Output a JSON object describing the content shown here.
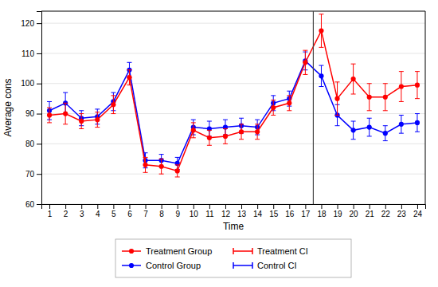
{
  "chart_data": {
    "type": "line",
    "xlabel": "Time",
    "ylabel": "Average cons",
    "x": [
      1,
      2,
      3,
      4,
      5,
      6,
      7,
      8,
      9,
      10,
      11,
      12,
      13,
      14,
      15,
      16,
      17,
      18,
      19,
      20,
      21,
      22,
      23,
      24
    ],
    "xlim": [
      0.5,
      24.5
    ],
    "xticks": [
      1,
      2,
      3,
      4,
      5,
      6,
      7,
      8,
      9,
      10,
      11,
      12,
      13,
      14,
      15,
      16,
      17,
      18,
      19,
      20,
      21,
      22,
      23,
      24
    ],
    "ylim": [
      60,
      124
    ],
    "yticks": [
      60,
      70,
      80,
      90,
      100,
      110,
      120
    ],
    "grid": true,
    "legend": "bottom",
    "marker": "circle",
    "vline_x": 17.5,
    "series": [
      {
        "name": "Treatment Group",
        "error_name": "Treatment CI",
        "color": "#ff0000",
        "values": [
          89.5,
          90.0,
          87.5,
          88.0,
          93.0,
          102.0,
          73.0,
          72.5,
          71.0,
          84.5,
          82.0,
          82.5,
          84.0,
          84.0,
          92.0,
          93.5,
          107.0,
          117.5,
          95.0,
          101.5,
          95.5,
          95.5,
          99.0,
          99.5
        ],
        "errors": [
          2.5,
          3.5,
          2.5,
          2.5,
          3.0,
          2.5,
          2.5,
          2.5,
          2.0,
          2.5,
          2.5,
          2.5,
          2.5,
          2.5,
          2.5,
          2.5,
          4.0,
          5.5,
          5.5,
          5.0,
          4.5,
          4.5,
          5.0,
          4.5
        ]
      },
      {
        "name": "Control Group",
        "error_name": "Control CI",
        "color": "#0000ff",
        "values": [
          91.0,
          93.5,
          88.5,
          89.0,
          94.0,
          104.5,
          74.5,
          74.5,
          73.5,
          85.5,
          85.0,
          85.5,
          86.0,
          85.5,
          93.5,
          95.0,
          107.5,
          102.5,
          89.5,
          84.5,
          85.5,
          83.5,
          86.5,
          87.0
        ],
        "errors": [
          3.0,
          3.5,
          2.5,
          2.5,
          3.0,
          2.5,
          2.5,
          2.0,
          2.0,
          2.5,
          2.5,
          2.5,
          2.5,
          2.5,
          2.5,
          2.5,
          3.0,
          3.5,
          3.5,
          3.0,
          3.0,
          2.5,
          3.0,
          3.0
        ]
      }
    ]
  }
}
